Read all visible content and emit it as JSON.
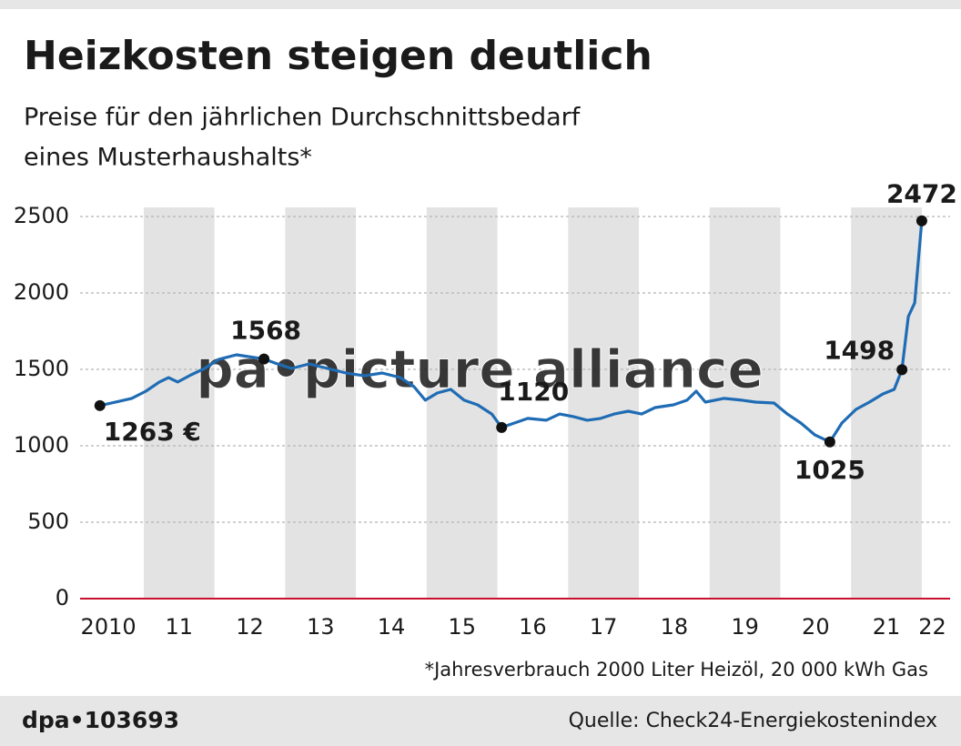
{
  "chart_data": {
    "type": "line",
    "title": "Heizkosten steigen deutlich",
    "subtitle": [
      "Preise für den jährlichen Durchschnittsbedarf",
      "eines Musterhaushalts*"
    ],
    "x": [
      2010.38,
      2010.64,
      2010.83,
      2011.03,
      2011.22,
      2011.35,
      2011.48,
      2011.67,
      2011.86,
      2012.06,
      2012.31,
      2012.7,
      2012.89,
      2013.09,
      2013.34,
      2013.6,
      2013.86,
      2014.12,
      2014.37,
      2014.63,
      2014.82,
      2014.98,
      2015.15,
      2015.34,
      2015.53,
      2015.72,
      2015.92,
      2016.06,
      2016.24,
      2016.43,
      2016.69,
      2016.88,
      2017.08,
      2017.27,
      2017.46,
      2017.65,
      2017.85,
      2018.04,
      2018.23,
      2018.49,
      2018.68,
      2018.81,
      2018.94,
      2019.2,
      2019.46,
      2019.65,
      2019.91,
      2020.1,
      2020.29,
      2020.49,
      2020.7,
      2020.87,
      2021.07,
      2021.26,
      2021.45,
      2021.61,
      2021.72,
      2021.81,
      2021.9,
      2022.0
    ],
    "values": [
      1263,
      1290,
      1310,
      1357,
      1417,
      1446,
      1417,
      1464,
      1506,
      1565,
      1595,
      1568,
      1536,
      1506,
      1536,
      1506,
      1476,
      1458,
      1476,
      1446,
      1387,
      1298,
      1345,
      1369,
      1298,
      1268,
      1208,
      1120,
      1149,
      1179,
      1167,
      1208,
      1190,
      1167,
      1179,
      1208,
      1226,
      1208,
      1250,
      1268,
      1298,
      1357,
      1286,
      1310,
      1298,
      1286,
      1280,
      1208,
      1149,
      1071,
      1025,
      1149,
      1238,
      1286,
      1339,
      1369,
      1498,
      1845,
      1935,
      2472
    ],
    "color": "#1f6cb4",
    "xlim": [
      2010.1,
      2022.4
    ],
    "ylim": [
      0,
      2500
    ],
    "xticks": [
      {
        "value": 2010.5,
        "label": "2010"
      },
      {
        "value": 2011.5,
        "label": "11"
      },
      {
        "value": 2012.5,
        "label": "12"
      },
      {
        "value": 2013.5,
        "label": "13"
      },
      {
        "value": 2014.5,
        "label": "14"
      },
      {
        "value": 2015.5,
        "label": "15"
      },
      {
        "value": 2016.5,
        "label": "16"
      },
      {
        "value": 2017.5,
        "label": "17"
      },
      {
        "value": 2018.5,
        "label": "18"
      },
      {
        "value": 2019.5,
        "label": "19"
      },
      {
        "value": 2020.5,
        "label": "20"
      },
      {
        "value": 2021.5,
        "label": "21"
      },
      {
        "value": 2022.15,
        "label": "22"
      }
    ],
    "yticks": [
      0,
      500,
      1000,
      1500,
      2000,
      2500
    ],
    "grid": true,
    "annotations": [
      {
        "x": 2010.38,
        "y": 1263,
        "label": "1263 €"
      },
      {
        "x": 2012.7,
        "y": 1568,
        "label": "1568"
      },
      {
        "x": 2016.06,
        "y": 1120,
        "label": "1120"
      },
      {
        "x": 2020.7,
        "y": 1025,
        "label": "1025"
      },
      {
        "x": 2021.72,
        "y": 1498,
        "label": "1498"
      },
      {
        "x": 2022.0,
        "y": 2472,
        "label": "2472"
      }
    ],
    "footnote": "*Jahresverbrauch 2000 Liter Heizöl, 20 000 kWh Gas",
    "credit": "dpa•103693",
    "source": "Quelle: Check24-Energiekostenindex",
    "watermark": "pa•picture alliance"
  }
}
